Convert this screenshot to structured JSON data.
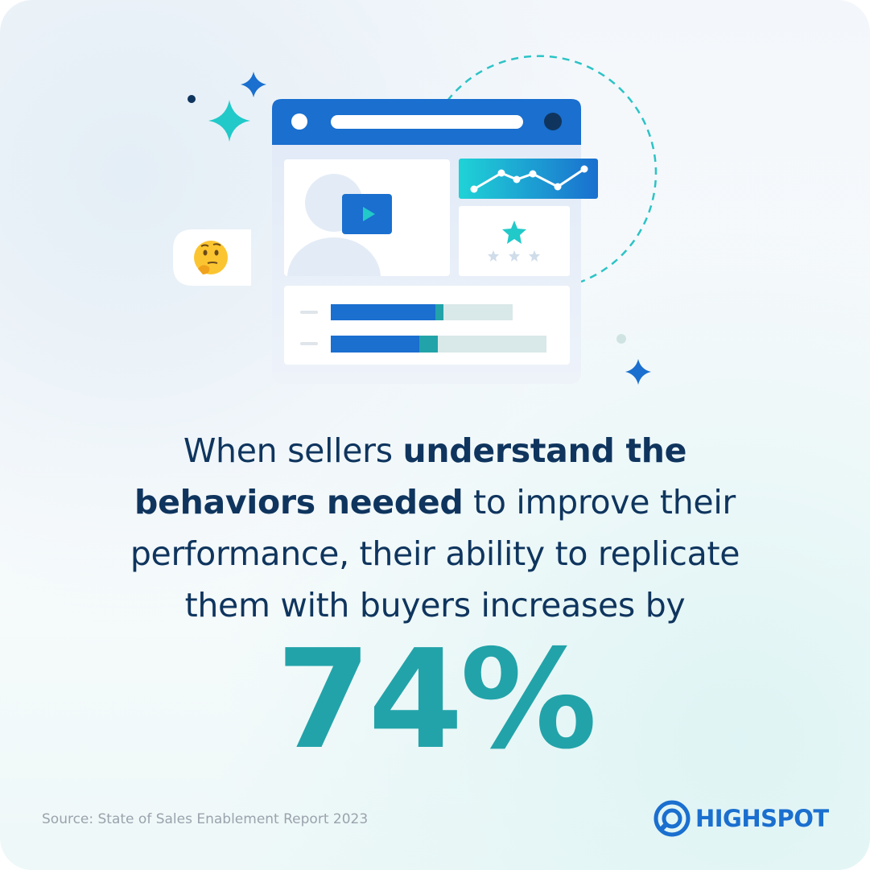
{
  "headline": {
    "lead": "When sellers ",
    "emphasis": "understand the behaviors needed",
    "rest": " to improve their performance, their ability to replicate them with buyers increases by"
  },
  "stat": "74%",
  "source": "Source: State of Sales Enablement Report 2023",
  "logo": "HIGHSPOT"
}
